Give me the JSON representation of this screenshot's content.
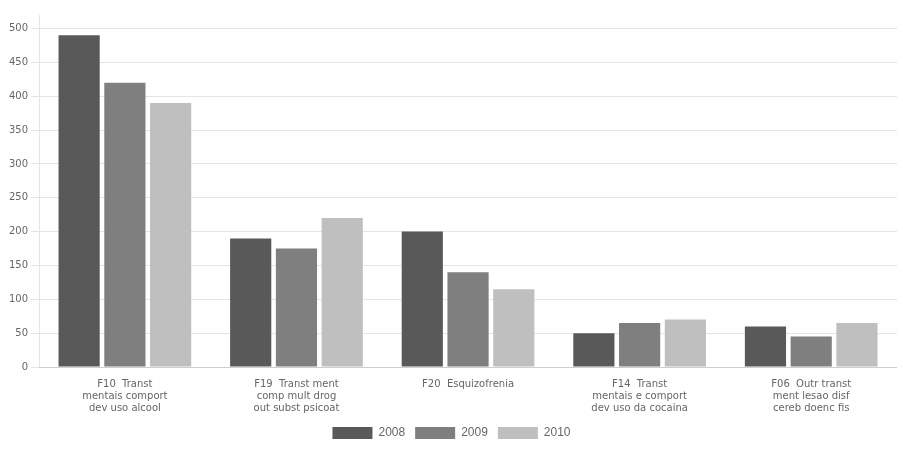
{
  "chart_data": {
    "type": "bar",
    "categories": [
      "F10  Transt\nmentais comport\ndev uso alcool",
      "F19  Transt ment\ncomp mult drog\nout subst psicoat",
      "F20  Esquizofrenia",
      "F14  Transt\nmentais e comport\ndev uso da cocaina",
      "F06  Outr transt\nment lesao disf\ncereb doenc fis"
    ],
    "series": [
      {
        "name": "2008",
        "color": "#595959",
        "values": [
          490,
          190,
          200,
          50,
          60
        ]
      },
      {
        "name": "2009",
        "color": "#7f7f7f",
        "values": [
          420,
          175,
          140,
          65,
          45
        ]
      },
      {
        "name": "2010",
        "color": "#bfbfbf",
        "values": [
          390,
          220,
          115,
          70,
          65
        ]
      }
    ],
    "ylim": [
      0,
      520
    ],
    "yticks": [
      0,
      50,
      100,
      150,
      200,
      250,
      300,
      350,
      400,
      450,
      500
    ],
    "grid": true,
    "legend": "bottom"
  }
}
